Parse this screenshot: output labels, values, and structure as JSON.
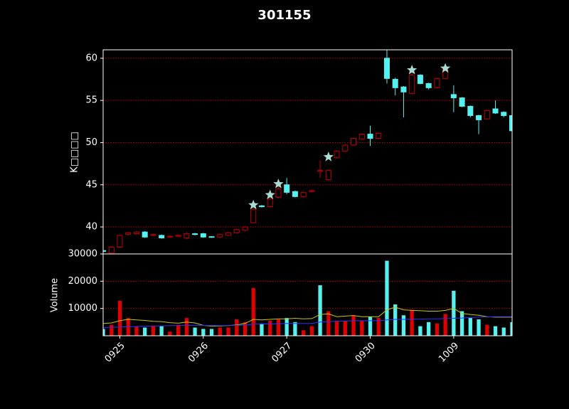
{
  "chart_data": [
    {
      "type": "candlestick",
      "title": "301155",
      "ylabel": "K□□□□",
      "categories": [
        null,
        null,
        "0925",
        null,
        null,
        null,
        null,
        null,
        null,
        null,
        null,
        null,
        "0926",
        null,
        null,
        null,
        null,
        null,
        null,
        null,
        null,
        null,
        "0927",
        null,
        null,
        null,
        null,
        null,
        null,
        null,
        null,
        null,
        "0930",
        null,
        null,
        null,
        null,
        null,
        null,
        null,
        null,
        null,
        "1009",
        null,
        null,
        null,
        null,
        null,
        null,
        null
      ],
      "open": [
        37.2,
        36.9,
        37.6,
        39.1,
        39.2,
        39.4,
        39.0,
        39.0,
        38.8,
        38.9,
        38.7,
        39.2,
        39.2,
        38.85,
        38.8,
        39.0,
        39.3,
        39.6,
        40.5,
        42.5,
        42.4,
        43.5,
        45.0,
        44.2,
        43.6,
        44.2,
        46.6,
        45.6,
        48.2,
        49.0,
        49.7,
        50.4,
        51.0,
        50.5,
        60.0,
        57.5,
        56.6,
        55.8,
        58.0,
        57.0,
        56.5,
        57.6,
        55.7,
        55.3,
        54.3,
        53.2,
        52.8,
        54.0,
        53.6,
        53.2
      ],
      "high": [
        37.3,
        37.7,
        39.1,
        39.4,
        39.5,
        39.5,
        39.2,
        39.1,
        39.0,
        39.1,
        39.4,
        39.3,
        39.3,
        38.9,
        39.2,
        39.4,
        39.8,
        40.1,
        42.2,
        42.6,
        43.4,
        44.9,
        45.8,
        44.3,
        44.2,
        44.4,
        47.9,
        46.8,
        49.1,
        49.8,
        50.6,
        51.1,
        52.0,
        51.2,
        61.0,
        57.7,
        56.7,
        58.2,
        58.1,
        57.1,
        57.7,
        58.8,
        56.8,
        55.4,
        54.4,
        53.3,
        53.9,
        55.0,
        53.7,
        53.3
      ],
      "low": [
        37.0,
        36.9,
        37.5,
        39.0,
        39.1,
        38.7,
        38.9,
        38.6,
        38.7,
        38.8,
        38.5,
        39.0,
        38.7,
        38.7,
        38.7,
        38.9,
        39.2,
        39.5,
        40.4,
        42.3,
        42.3,
        43.4,
        43.9,
        43.5,
        43.5,
        44.1,
        45.8,
        45.5,
        48.1,
        48.9,
        49.6,
        50.3,
        49.6,
        50.4,
        57.0,
        55.6,
        53.0,
        55.7,
        56.9,
        56.3,
        56.4,
        57.5,
        53.6,
        54.2,
        53.0,
        51.0,
        52.7,
        53.4,
        53.0,
        51.3
      ],
      "close": [
        37.1,
        37.6,
        39.0,
        39.3,
        39.4,
        38.8,
        39.1,
        38.7,
        38.9,
        39.0,
        39.2,
        39.1,
        38.8,
        38.8,
        39.1,
        39.3,
        39.7,
        40.0,
        42.1,
        42.4,
        43.3,
        44.5,
        44.1,
        43.6,
        44.1,
        44.3,
        46.7,
        46.7,
        49.0,
        49.7,
        50.5,
        51.0,
        50.5,
        51.1,
        57.6,
        56.5,
        56.0,
        58.0,
        57.0,
        56.5,
        57.6,
        58.7,
        55.3,
        54.3,
        53.2,
        52.7,
        53.8,
        53.5,
        53.2,
        51.4
      ],
      "up_color": "#c00000",
      "down_color": "#55f0f0",
      "markers": {
        "color": "#a8dcd4",
        "values": [
          null,
          null,
          null,
          null,
          null,
          null,
          null,
          null,
          null,
          null,
          null,
          null,
          null,
          null,
          null,
          null,
          null,
          null,
          42.6,
          null,
          43.8,
          45.1,
          null,
          null,
          null,
          null,
          null,
          48.3,
          null,
          null,
          null,
          null,
          null,
          null,
          null,
          null,
          null,
          58.6,
          null,
          null,
          null,
          58.8,
          null,
          null,
          null,
          null,
          null,
          null,
          null,
          null
        ]
      },
      "xlim": [
        0,
        49
      ],
      "ylim": [
        36.8,
        61.0
      ],
      "yticks": [
        40,
        45,
        50,
        55,
        60
      ],
      "grid": true,
      "grid_color": "#c00000"
    },
    {
      "type": "volume",
      "ylabel": "Volume",
      "series": [
        {
          "values": [
            2500,
            4000,
            12800,
            6500,
            3500,
            3000,
            3500,
            3500,
            1500,
            4000,
            6500,
            3000,
            2500,
            2500,
            3000,
            3000,
            6000,
            5000,
            17500,
            4500,
            5500,
            6000,
            6500,
            5000,
            2000,
            3500,
            18500,
            9000,
            5500,
            5500,
            7500,
            5500,
            7000,
            6500,
            27500,
            11500,
            7500,
            9500,
            3500,
            5000,
            4500,
            8000,
            16500,
            9000,
            6500,
            6000,
            4000,
            3500,
            3000,
            5000
          ],
          "colors": [
            "#55f0f0",
            "#e00000",
            "#e00000",
            "#e00000",
            "#e00000",
            "#55f0f0",
            "#e00000",
            "#55f0f0",
            "#e00000",
            "#e00000",
            "#e00000",
            "#55f0f0",
            "#55f0f0",
            "#55f0f0",
            "#e00000",
            "#e00000",
            "#e00000",
            "#e00000",
            "#e00000",
            "#55f0f0",
            "#e00000",
            "#e00000",
            "#55f0f0",
            "#55f0f0",
            "#e00000",
            "#e00000",
            "#55f0f0",
            "#e00000",
            "#e00000",
            "#e00000",
            "#e00000",
            "#e00000",
            "#55f0f0",
            "#e00000",
            "#55f0f0",
            "#55f0f0",
            "#55f0f0",
            "#e00000",
            "#55f0f0",
            "#55f0f0",
            "#e00000",
            "#e00000",
            "#55f0f0",
            "#55f0f0",
            "#55f0f0",
            "#55f0f0",
            "#e00000",
            "#55f0f0",
            "#55f0f0",
            "#55f0f0"
          ]
        }
      ],
      "lines": [
        {
          "color": "#c8c800",
          "values": [
            4500,
            4700,
            5500,
            6000,
            5800,
            5600,
            5300,
            5200,
            4800,
            4600,
            5000,
            4700,
            3800,
            3500,
            3600,
            3700,
            4000,
            4500,
            6000,
            5800,
            6000,
            6200,
            6200,
            6400,
            6200,
            6300,
            7800,
            8000,
            7000,
            7200,
            7400,
            7000,
            7000,
            7000,
            9500,
            10500,
            9500,
            9300,
            9200,
            9000,
            9000,
            9300,
            10000,
            8200,
            7800,
            7500,
            7000,
            6800,
            6800,
            6800
          ]
        },
        {
          "color": "#3030ff",
          "values": [
            3000,
            3100,
            3200,
            3300,
            3400,
            3500,
            3600,
            3600,
            3700,
            3700,
            3800,
            3800,
            3800,
            3700,
            3700,
            3700,
            3800,
            3900,
            4200,
            4300,
            4300,
            4400,
            4500,
            4500,
            4500,
            4500,
            5000,
            5200,
            5300,
            5400,
            5500,
            5500,
            5500,
            5500,
            5800,
            6000,
            6000,
            6100,
            6100,
            6200,
            6200,
            6300,
            6400,
            6500,
            6700,
            6800,
            6900,
            7000,
            7000,
            7000
          ]
        }
      ],
      "ylim": [
        0,
        30000
      ],
      "yticks": [
        10000,
        20000,
        30000
      ],
      "grid": true,
      "grid_color": "#c00000"
    }
  ]
}
